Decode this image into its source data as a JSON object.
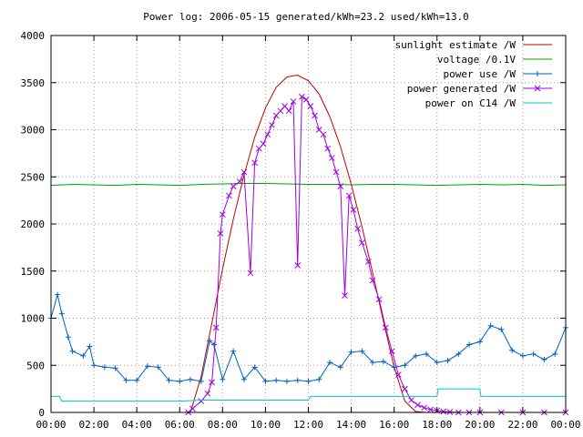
{
  "chart_data": {
    "type": "line",
    "title": "Power log: 2006-05-15 generated/kWh=23.2 used/kWh=13.0",
    "xlabel": "",
    "ylabel": "",
    "xlim": [
      0,
      24
    ],
    "ylim": [
      0,
      4000
    ],
    "grid": true,
    "legend_position": "top-right",
    "x_ticks": [
      0,
      2,
      4,
      6,
      8,
      10,
      12,
      14,
      16,
      18,
      20,
      22,
      24
    ],
    "x_tick_labels": [
      "00:00",
      "02:00",
      "04:00",
      "06:00",
      "08:00",
      "10:00",
      "12:00",
      "14:00",
      "16:00",
      "18:00",
      "20:00",
      "22:00",
      "00:00"
    ],
    "y_ticks": [
      0,
      500,
      1000,
      1500,
      2000,
      2500,
      3000,
      3500,
      4000
    ],
    "y_tick_labels": [
      "0",
      "500",
      "1000",
      "1500",
      "2000",
      "2500",
      "3000",
      "3500",
      "4000"
    ],
    "series": [
      {
        "name": "sunlight estimate /W",
        "color": "#c00000",
        "marker": "none",
        "x": [
          6.5,
          7.0,
          7.5,
          8.0,
          8.5,
          9.0,
          9.5,
          10.0,
          10.5,
          11.0,
          11.5,
          12.0,
          12.5,
          13.0,
          13.5,
          14.0,
          14.5,
          15.0,
          15.5,
          16.0,
          16.5,
          17.0,
          17.5
        ],
        "y": [
          0,
          380,
          950,
          1520,
          2050,
          2520,
          2920,
          3230,
          3450,
          3560,
          3580,
          3520,
          3380,
          3140,
          2820,
          2420,
          1970,
          1480,
          970,
          480,
          120,
          10,
          0
        ]
      },
      {
        "name": "voltage /0.1V",
        "color": "#00a000",
        "marker": "none",
        "x": [
          0,
          1,
          2,
          3,
          4,
          5,
          6,
          7,
          8,
          9,
          10,
          11,
          12,
          13,
          14,
          15,
          16,
          17,
          18,
          19,
          20,
          21,
          22,
          23,
          24
        ],
        "y": [
          2410,
          2420,
          2415,
          2410,
          2420,
          2415,
          2410,
          2420,
          2425,
          2430,
          2430,
          2425,
          2420,
          2420,
          2415,
          2420,
          2420,
          2415,
          2410,
          2415,
          2420,
          2415,
          2420,
          2410,
          2415
        ]
      },
      {
        "name": "power use /W",
        "color": "#0060c0",
        "marker": "plus",
        "x": [
          0,
          0.3,
          0.5,
          0.8,
          1.0,
          1.5,
          1.8,
          2.0,
          2.5,
          3.0,
          3.5,
          4.0,
          4.5,
          5.0,
          5.5,
          6.0,
          6.5,
          7.0,
          7.4,
          7.6,
          8.0,
          8.5,
          9.0,
          9.5,
          10.0,
          10.5,
          11.0,
          11.5,
          12.0,
          12.5,
          13.0,
          13.5,
          14.0,
          14.5,
          15.0,
          15.5,
          16.0,
          16.5,
          17.0,
          17.5,
          18.0,
          18.5,
          19.0,
          19.5,
          20.0,
          20.5,
          21.0,
          21.5,
          22.0,
          22.5,
          23.0,
          23.5,
          24.0
        ],
        "y": [
          1000,
          1250,
          1050,
          800,
          650,
          600,
          700,
          500,
          480,
          470,
          340,
          340,
          490,
          480,
          340,
          330,
          350,
          330,
          760,
          720,
          350,
          650,
          350,
          480,
          330,
          340,
          330,
          340,
          330,
          350,
          530,
          480,
          640,
          650,
          530,
          540,
          480,
          500,
          600,
          620,
          530,
          550,
          620,
          720,
          750,
          920,
          880,
          660,
          600,
          620,
          560,
          620,
          900
        ]
      },
      {
        "name": "power generated /W",
        "color": "#a000e0",
        "marker": "x",
        "x": [
          6.4,
          6.6,
          7.0,
          7.3,
          7.5,
          7.7,
          7.9,
          8.0,
          8.3,
          8.5,
          8.8,
          9.0,
          9.3,
          9.5,
          9.7,
          9.9,
          10.1,
          10.3,
          10.5,
          10.7,
          10.9,
          11.1,
          11.3,
          11.5,
          11.7,
          11.9,
          12.1,
          12.3,
          12.5,
          12.7,
          12.9,
          13.1,
          13.3,
          13.5,
          13.7,
          13.9,
          14.1,
          14.3,
          14.5,
          14.8,
          15.0,
          15.3,
          15.6,
          15.9,
          16.2,
          16.5,
          16.8,
          17.1,
          17.4,
          17.7,
          18.0,
          18.3,
          18.6,
          19.0,
          19.5,
          20.0,
          21.0,
          22.0,
          23.0,
          24.0
        ],
        "y": [
          0,
          40,
          120,
          200,
          320,
          900,
          1900,
          2100,
          2300,
          2400,
          2450,
          2550,
          1480,
          2650,
          2800,
          2850,
          2950,
          3050,
          3150,
          3200,
          3250,
          3200,
          3300,
          1560,
          3350,
          3320,
          3250,
          3150,
          3000,
          2950,
          2800,
          2700,
          2550,
          2400,
          1240,
          2300,
          2150,
          1950,
          1800,
          1600,
          1400,
          1200,
          900,
          650,
          400,
          250,
          130,
          80,
          50,
          30,
          20,
          10,
          5,
          0,
          0,
          0,
          0,
          0,
          0,
          0
        ]
      },
      {
        "name": "power on C14 /W",
        "color": "#00c8c8",
        "marker": "none",
        "x": [
          0,
          0.4,
          0.5,
          2.0,
          2.1,
          6.0,
          7.0,
          12.0,
          12.1,
          15.0,
          18.0,
          18.05,
          20.0,
          20.05,
          24.0
        ],
        "y": [
          170,
          170,
          120,
          120,
          120,
          120,
          130,
          130,
          170,
          170,
          170,
          250,
          250,
          170,
          170
        ]
      }
    ]
  }
}
